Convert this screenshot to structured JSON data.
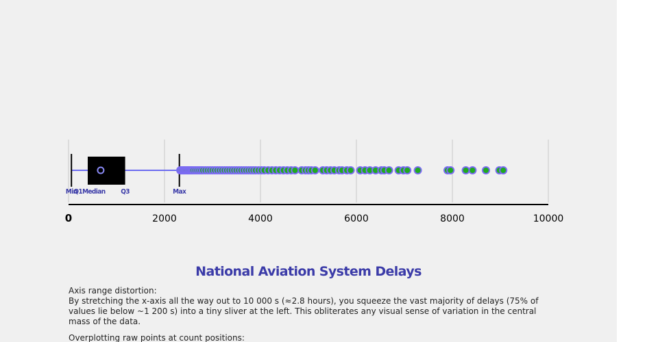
{
  "chart_data": {
    "type": "boxplot",
    "title": "National Aviation System Delays",
    "xlim": [
      0,
      10000
    ],
    "x_ticks": [
      0,
      2000,
      4000,
      6000,
      8000,
      10000
    ],
    "x_tick_labels": [
      "0",
      "2000",
      "4000",
      "6000",
      "8000",
      "10000"
    ],
    "gridlines": true,
    "box": {
      "min": 60,
      "q1": 400,
      "median": 670,
      "q3": 1180,
      "max": 2310
    },
    "stat_labels": {
      "min": "Min",
      "q1_median": "Q1Median",
      "q3": "Q3",
      "max": "Max"
    },
    "outliers": [
      2330,
      2360,
      2390,
      2420,
      2450,
      2480,
      2510,
      2540,
      2570,
      2600,
      2640,
      2680,
      2720,
      2760,
      2800,
      2850,
      2900,
      2950,
      3000,
      3050,
      3100,
      3150,
      3200,
      3250,
      3300,
      3350,
      3400,
      3450,
      3500,
      3550,
      3600,
      3650,
      3700,
      3750,
      3800,
      3850,
      3900,
      3960,
      4020,
      4080,
      4160,
      4240,
      4320,
      4400,
      4480,
      4560,
      4640,
      4720,
      4860,
      4940,
      5000,
      5060,
      5140,
      5300,
      5380,
      5460,
      5540,
      5640,
      5700,
      5800,
      5880,
      6080,
      6180,
      6280,
      6400,
      6520,
      6580,
      6680,
      6880,
      6980,
      7060,
      7280,
      7900,
      7960,
      8280,
      8420,
      8700,
      8980,
      9060
    ]
  },
  "notes": [
    {
      "heading": "Axis range distortion:",
      "body": "By stretching the x-axis all the way out to 10 000 s (≈2.8 hours), you squeeze the vast majority of delays (75% of values lie below ~1 200 s) into a tiny sliver at the left. This obliterates any visual sense of variation in the central mass of the data."
    },
    {
      "heading": "Overplotting raw points at count positions:",
      "body": ""
    }
  ],
  "colors": {
    "whisker": "#6b6bf0",
    "box_fill": "#000000",
    "median_marker": "#8a8af5",
    "outlier_fill": "#1faa1f",
    "outlier_stroke": "#7b6bf2",
    "title": "#3b3ba8",
    "grid": "#c8c8c8",
    "axis": "#000000"
  }
}
